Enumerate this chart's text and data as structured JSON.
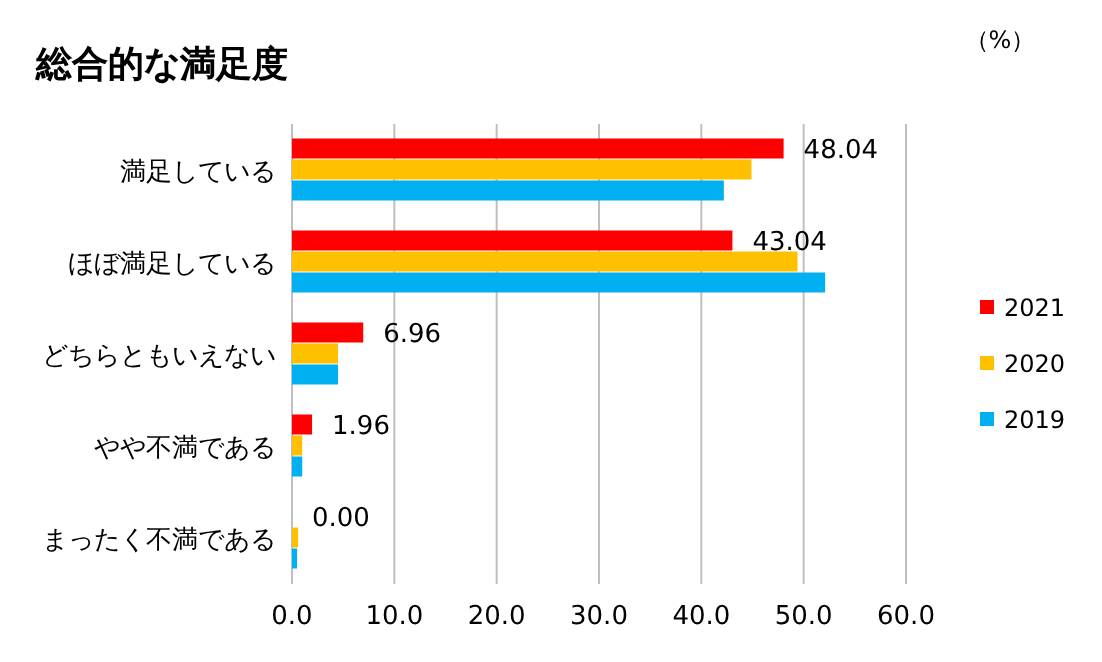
{
  "chart_data": {
    "type": "bar",
    "orientation": "horizontal",
    "title": "総合的な満足度",
    "annotations": [
      "（%）"
    ],
    "categories": [
      "満足している",
      "ほぼ満足している",
      "どちらともいえない",
      "やや不満である",
      "まったく不満である"
    ],
    "series": [
      {
        "name": "2021",
        "color": "#ff0000",
        "values": [
          48.04,
          43.04,
          6.96,
          1.96,
          0.0
        ],
        "value_labels": [
          "48.04",
          "43.04",
          "6.96",
          "1.96",
          "0.00"
        ]
      },
      {
        "name": "2020",
        "color": "#ffc000",
        "values": [
          44.9,
          49.4,
          4.5,
          1.0,
          0.6
        ]
      },
      {
        "name": "2019",
        "color": "#00b0f0",
        "values": [
          42.2,
          52.1,
          4.5,
          1.0,
          0.5
        ]
      }
    ],
    "xlim": [
      0,
      60
    ],
    "xticks": [
      {
        "value": 0,
        "label": "0.0"
      },
      {
        "value": 10,
        "label": "10.0"
      },
      {
        "value": 20,
        "label": "20.0"
      },
      {
        "value": 30,
        "label": "30.0"
      },
      {
        "value": 40,
        "label": "40.0"
      },
      {
        "value": 50,
        "label": "50.0"
      },
      {
        "value": 60,
        "label": "60.0"
      }
    ],
    "grid": "x",
    "legend": "right"
  }
}
